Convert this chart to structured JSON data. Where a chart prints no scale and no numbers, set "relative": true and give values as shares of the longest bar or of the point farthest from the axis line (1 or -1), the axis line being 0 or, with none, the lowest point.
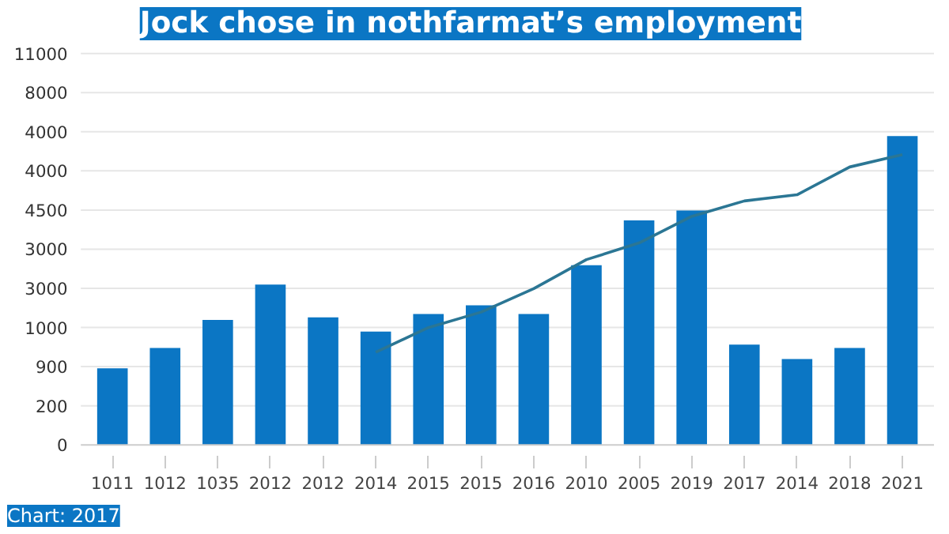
{
  "chart_data": {
    "type": "bar",
    "title": "Jock chose in nothfarmat’s employment",
    "relative": true,
    "categories": [
      "1011",
      "1012",
      "1035",
      "2012",
      "2012",
      "2014",
      "2015",
      "2015",
      "2016",
      "2010",
      "2005",
      "2019",
      "2017",
      "2014",
      "2018",
      "2021"
    ],
    "series": [
      {
        "color": "#0b76c4",
        "values": [
          0.248,
          0.314,
          0.405,
          0.519,
          0.413,
          0.367,
          0.424,
          0.452,
          0.424,
          0.582,
          0.727,
          0.759,
          0.325,
          0.278,
          0.314,
          1
        ]
      },
      {
        "type": "line",
        "color": "#2b7694",
        "values": [
          null,
          null,
          null,
          null,
          null,
          0.3,
          0.38,
          0.43,
          0.506,
          0.6,
          0.654,
          0.74,
          0.79,
          0.81,
          0.9,
          0.94
        ]
      }
    ],
    "grid": "y",
    "annotations": [
      "0",
      "200",
      "900",
      "1000",
      "3000",
      "3000",
      "4500",
      "4000",
      "4000",
      "8000",
      "11000",
      "Chart: 2017"
    ]
  }
}
